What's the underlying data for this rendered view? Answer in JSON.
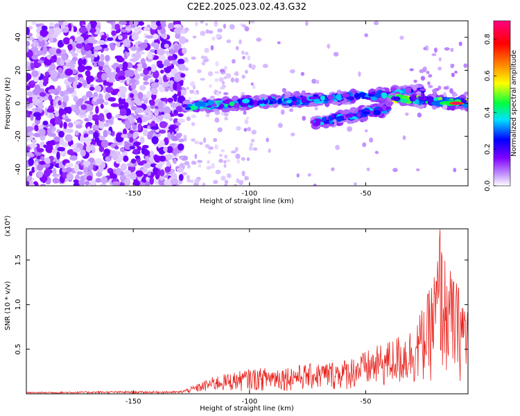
{
  "figure": {
    "title": "C2E2.2025.023.02.43.G32",
    "colorbar_label": "Normalized spectral amplitude"
  },
  "chart_data": [
    {
      "type": "heatmap",
      "title": "C2E2.2025.023.02.43.G32",
      "xlabel": "Height of straight line (km)",
      "ylabel": "Frequency (Hz)",
      "xlim": [
        -196,
        -6
      ],
      "ylim": [
        -50,
        50
      ],
      "x_ticks": [
        -150,
        -100,
        -50
      ],
      "y_ticks": [
        -40,
        -20,
        0,
        20,
        40
      ],
      "colorbar": {
        "label": "Normalized spectral amplitude",
        "range": [
          0,
          0.9
        ],
        "ticks": [
          0.0,
          0.2,
          0.4,
          0.6,
          0.8
        ],
        "colormap": "rainbow",
        "colors": [
          "#ffffff",
          "#c9a3ff",
          "#8000ff",
          "#0000ff",
          "#00e0ff",
          "#00ff40",
          "#ffff00",
          "#ff8000",
          "#ff0000",
          "#ff0080"
        ]
      },
      "features": [
        {
          "kind": "noise",
          "x_range": [
            -196,
            -128
          ],
          "y_range": [
            -50,
            50
          ],
          "amplitude": 0.1
        },
        {
          "kind": "ridge",
          "x_range": [
            -128,
            -72
          ],
          "y_start": -2,
          "y_end": 3,
          "amplitude": 0.35
        },
        {
          "kind": "ridge",
          "x_range": [
            -72,
            -40
          ],
          "y_start": -12,
          "y_end": -3,
          "amplitude": 0.3
        },
        {
          "kind": "ridge",
          "x_range": [
            -85,
            -25
          ],
          "y_start": 1,
          "y_end": 7,
          "amplitude": 0.3
        },
        {
          "kind": "ridge",
          "x_range": [
            -40,
            -6
          ],
          "y_start": 3,
          "y_end": 0,
          "amplitude": 0.45
        },
        {
          "kind": "peak",
          "x": -11,
          "y": 0,
          "amplitude": 0.9
        }
      ]
    },
    {
      "type": "line",
      "xlabel": "Height of straight line (km)",
      "ylabel": "SNR (10 * v/v)",
      "y_multiplier": "(x10⁴)",
      "xlim": [
        -196,
        -6
      ],
      "ylim": [
        0,
        1.85
      ],
      "x_ticks": [
        -150,
        -100,
        -50
      ],
      "y_ticks": [
        0.5,
        1.0,
        1.5
      ],
      "color": "#e8201a",
      "envelope": {
        "x": [
          -196,
          -160,
          -130,
          -125,
          -115,
          -100,
          -80,
          -60,
          -50,
          -40,
          -30,
          -24,
          -20,
          -18,
          -16,
          -12,
          -8,
          -6
        ],
        "y": [
          0.02,
          0.03,
          0.03,
          0.08,
          0.2,
          0.28,
          0.32,
          0.38,
          0.48,
          0.6,
          0.75,
          1.05,
          1.45,
          1.85,
          1.55,
          1.3,
          1.15,
          1.05
        ]
      }
    }
  ]
}
